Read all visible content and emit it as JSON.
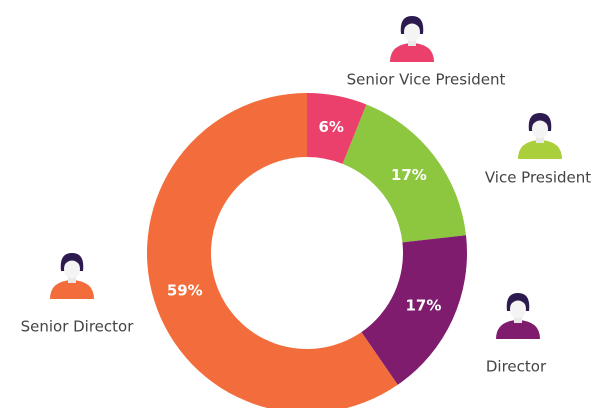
{
  "chart_data": {
    "type": "donut",
    "categories": [
      "Senior Vice President",
      "Vice President",
      "Director",
      "Senior Director"
    ],
    "values": [
      6,
      17,
      17,
      59
    ],
    "value_labels": [
      "6%",
      "17%",
      "17%",
      "59%"
    ],
    "colors": [
      "#ea406b",
      "#8dc63f",
      "#7f1c6e",
      "#f26d3b"
    ]
  }
}
